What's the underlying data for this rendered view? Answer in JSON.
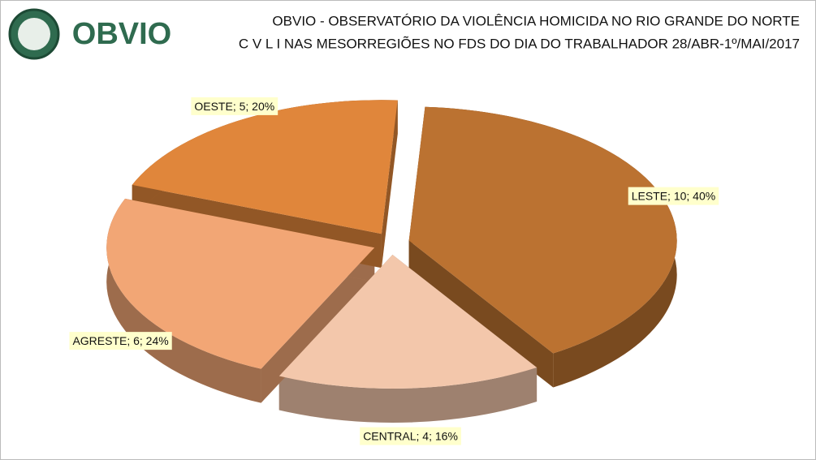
{
  "chart_data": {
    "type": "pie",
    "logo_text": "OBVIO",
    "title": "OBVIO - OBSERVATÓRIO DA VIOLÊNCIA HOMICIDA NO RIO GRANDE DO NORTE",
    "subtitle": "C V L I  NAS MESORREGIÕES NO FDS DO DIA DO TRABALHADOR  28/ABR-1º/MAI/2017",
    "categories": [
      "LESTE",
      "CENTRAL",
      "AGRESTE",
      "OESTE"
    ],
    "values": [
      10,
      4,
      6,
      5
    ],
    "value_labels": [
      "LESTE; 10; 40%",
      "CENTRAL; 4; 16%",
      "AGRESTE; 6; 24%",
      "OESTE; 5; 20%"
    ],
    "colors": [
      "#bb7231",
      "#f3c7ab",
      "#f2a675",
      "#e0863b"
    ]
  }
}
